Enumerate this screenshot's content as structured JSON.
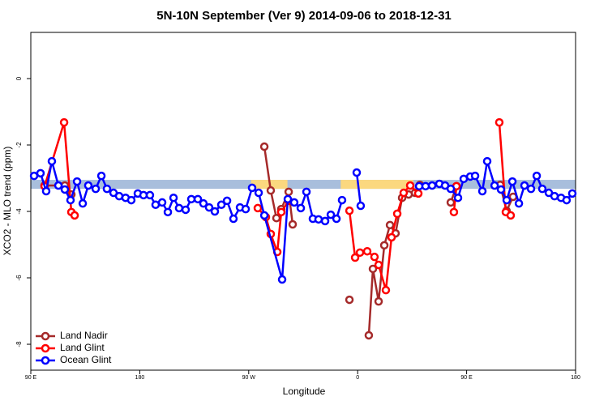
{
  "chart_data": {
    "type": "line",
    "title": "5N-10N September (Ver 9)   2014-09-06 to 2018-12-31",
    "x_label": "Longitude",
    "y_label": "XCO2 - MLO trend (ppm)",
    "xlim": [
      90,
      540
    ],
    "ylim": [
      -8.78,
      1.39
    ],
    "xticks": [
      {
        "value": 90,
        "label": "90 E"
      },
      {
        "value": 180,
        "label": "180"
      },
      {
        "value": 270,
        "label": "90 W"
      },
      {
        "value": 360,
        "label": "0"
      },
      {
        "value": 450,
        "label": "90 E"
      },
      {
        "value": 540,
        "label": "180"
      }
    ],
    "yticks": [
      0,
      -2,
      -4,
      -6,
      -8
    ],
    "legend": "bottom-left",
    "bands": [
      {
        "color": "#a8bedc",
        "x": [
          90,
          540
        ],
        "y": [
          -3.32,
          -3.05
        ]
      },
      {
        "color": "#fbd87f",
        "x": [
          272,
          302
        ],
        "y": [
          -3.32,
          -3.05
        ]
      },
      {
        "color": "#fbd87f",
        "x": [
          346,
          406
        ],
        "y": [
          -3.32,
          -3.05
        ]
      }
    ],
    "series": [
      {
        "name": "Land Nadir",
        "color": "#a52a2a",
        "x": [
          101.4,
          118.1,
          123.5,
          null,
          282.9,
          288.2,
          292.9,
          296.9,
          303,
          306.3,
          null,
          353.2,
          null,
          369.2,
          372.6,
          377.3,
          382,
          386.7,
          391.3,
          396.7,
          402.1,
          407.4,
          411.4,
          null,
          436.9,
          441.6,
          null,
          477.7,
          483,
          488.4
        ],
        "values": [
          -3.22,
          -3.22,
          -3.49,
          null,
          -2.05,
          -3.37,
          -4.2,
          -3.93,
          -3.41,
          -4.39,
          null,
          -6.66,
          null,
          -7.73,
          -5.73,
          -6.71,
          -5.02,
          -4.41,
          -4.66,
          -3.59,
          -3.49,
          -3.44,
          -3.2,
          null,
          -3.73,
          -3.24,
          null,
          -3.2,
          -3.98,
          -3.56
        ]
      },
      {
        "name": "Land Glint",
        "color": "#ff0000",
        "x": [
          101.4,
          117.5,
          123.5,
          126.2,
          null,
          277.5,
          284.2,
          288.2,
          293.6,
          296.9,
          303,
          null,
          353.2,
          357.9,
          361.9,
          367.9,
          373.9,
          377.3,
          383.3,
          388,
          392.7,
          398,
          403.4,
          410.1,
          null,
          439.5,
          441.6,
          null,
          477,
          482.4,
          486.4
        ],
        "values": [
          -3.24,
          -1.32,
          -4.02,
          -4.12,
          null,
          -3.9,
          -4.17,
          -4.68,
          -5.22,
          -4.02,
          -3.68,
          null,
          -3.98,
          -5.39,
          -5.24,
          -5.2,
          -5.37,
          -5.61,
          -6.37,
          -4.78,
          -4.07,
          -3.44,
          -3.22,
          -3.46,
          null,
          -4.02,
          -3.24,
          null,
          -1.32,
          -4.02,
          -4.12
        ]
      },
      {
        "name": "Ocean Glint",
        "color": "#0000ff",
        "x": [
          92.7,
          98,
          102.7,
          107.4,
          112.8,
          118.1,
          122.8,
          128.2,
          132.9,
          137.5,
          143.6,
          148.3,
          152.9,
          158.3,
          163,
          168.3,
          173,
          178.4,
          183.1,
          188.4,
          193.1,
          198.5,
          203.2,
          207.9,
          212.5,
          217.9,
          222.6,
          228,
          232.6,
          237.3,
          242,
          247.4,
          252.1,
          257.4,
          262.8,
          267.5,
          272.8,
          278.2,
          282.9,
          297.6,
          302.3,
          307.6,
          313,
          317.7,
          323,
          327.7,
          333.1,
          337.8,
          342.5,
          347.1,
          null,
          359.2,
          362.5,
          null,
          410.8,
          416.1,
          421.5,
          427.5,
          432.2,
          436.9,
          442.9,
          447.6,
          453,
          457,
          463,
          467,
          473.1,
          478.4,
          483.1,
          487.8,
          493.2,
          497.8,
          503.2,
          507.9,
          512.5,
          517.9,
          522.6,
          528,
          532.6,
          537.3
        ],
        "values": [
          -2.93,
          -2.85,
          -3.39,
          -2.49,
          -3.22,
          -3.34,
          -3.66,
          -3.1,
          -3.76,
          -3.22,
          -3.32,
          -2.93,
          -3.32,
          -3.44,
          -3.54,
          -3.59,
          -3.66,
          -3.46,
          -3.51,
          -3.51,
          -3.8,
          -3.73,
          -4.02,
          -3.59,
          -3.9,
          -3.95,
          -3.63,
          -3.63,
          -3.76,
          -3.88,
          -4.0,
          -3.8,
          -3.68,
          -4.22,
          -3.88,
          -3.93,
          -3.29,
          -3.44,
          -4.12,
          -6.05,
          -3.63,
          -3.73,
          -3.9,
          -3.41,
          -4.22,
          -4.24,
          -4.29,
          -4.1,
          -4.22,
          -3.66,
          null,
          -2.83,
          -3.83,
          null,
          -3.24,
          -3.24,
          -3.22,
          -3.17,
          -3.22,
          -3.32,
          -3.59,
          -3.02,
          -2.95,
          -2.93,
          -3.39,
          -2.49,
          -3.22,
          -3.34,
          -3.66,
          -3.1,
          -3.76,
          -3.22,
          -3.32,
          -2.93,
          -3.32,
          -3.44,
          -3.54,
          -3.59,
          -3.66,
          -3.46
        ]
      }
    ]
  }
}
